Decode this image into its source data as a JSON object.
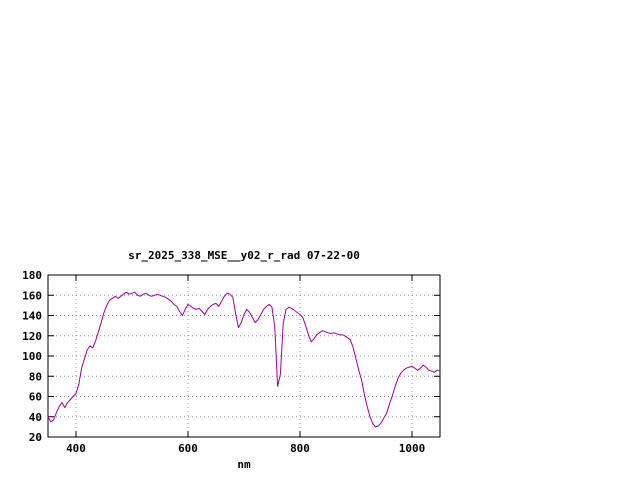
{
  "page": {
    "background": "#ffffff"
  },
  "chart_data": {
    "type": "line",
    "title": "sr_2025_338_MSE__y02_r_rad 07-22-00",
    "xlabel": "nm",
    "ylabel": "",
    "xlim": [
      350,
      1050
    ],
    "ylim": [
      20,
      180
    ],
    "xticks": [
      400,
      600,
      800,
      1000
    ],
    "yticks": [
      20,
      40,
      60,
      80,
      100,
      120,
      140,
      160,
      180
    ],
    "grid": true,
    "grid_style": "dotted",
    "grid_color": "#909090",
    "legend_position": "none",
    "line_color": "#a000a0",
    "x": [
      350,
      355,
      360,
      365,
      370,
      375,
      380,
      385,
      390,
      395,
      400,
      405,
      410,
      415,
      420,
      425,
      430,
      435,
      440,
      445,
      450,
      455,
      460,
      465,
      470,
      475,
      480,
      485,
      490,
      495,
      500,
      505,
      510,
      515,
      520,
      525,
      530,
      535,
      540,
      545,
      550,
      555,
      560,
      565,
      570,
      575,
      580,
      585,
      590,
      595,
      600,
      605,
      610,
      615,
      620,
      625,
      630,
      635,
      640,
      645,
      650,
      655,
      660,
      665,
      670,
      675,
      680,
      685,
      690,
      695,
      700,
      705,
      710,
      715,
      720,
      725,
      730,
      735,
      740,
      745,
      750,
      755,
      760,
      765,
      770,
      775,
      780,
      785,
      790,
      795,
      800,
      805,
      810,
      815,
      820,
      825,
      830,
      835,
      840,
      845,
      850,
      855,
      860,
      865,
      870,
      875,
      880,
      885,
      890,
      895,
      900,
      905,
      910,
      915,
      920,
      925,
      930,
      935,
      940,
      945,
      950,
      955,
      960,
      965,
      970,
      975,
      980,
      985,
      990,
      995,
      1000,
      1005,
      1010,
      1015,
      1020,
      1025,
      1030,
      1035,
      1040,
      1045,
      1050
    ],
    "y": [
      40,
      35,
      37,
      44,
      50,
      54,
      49,
      54,
      57,
      60,
      63,
      72,
      88,
      97,
      106,
      110,
      108,
      115,
      124,
      133,
      143,
      150,
      155,
      157,
      159,
      157,
      159,
      161,
      163,
      161,
      162,
      163,
      160,
      159,
      161,
      162,
      160,
      159,
      160,
      161,
      160,
      159,
      158,
      156,
      154,
      151,
      149,
      144,
      140,
      146,
      151,
      149,
      147,
      146,
      147,
      144,
      141,
      146,
      149,
      151,
      152,
      149,
      154,
      159,
      162,
      161,
      158,
      142,
      128,
      133,
      141,
      146,
      143,
      138,
      133,
      136,
      141,
      146,
      149,
      151,
      148,
      128,
      70,
      82,
      132,
      146,
      148,
      147,
      145,
      143,
      141,
      138,
      130,
      121,
      114,
      117,
      121,
      123,
      125,
      124,
      123,
      122,
      123,
      122,
      121,
      121,
      120,
      118,
      116,
      108,
      97,
      86,
      76,
      62,
      50,
      40,
      33,
      30,
      31,
      34,
      39,
      44,
      53,
      61,
      70,
      78,
      83,
      86,
      88,
      89,
      90,
      88,
      86,
      88,
      91,
      89,
      86,
      85,
      84,
      86,
      85
    ]
  }
}
